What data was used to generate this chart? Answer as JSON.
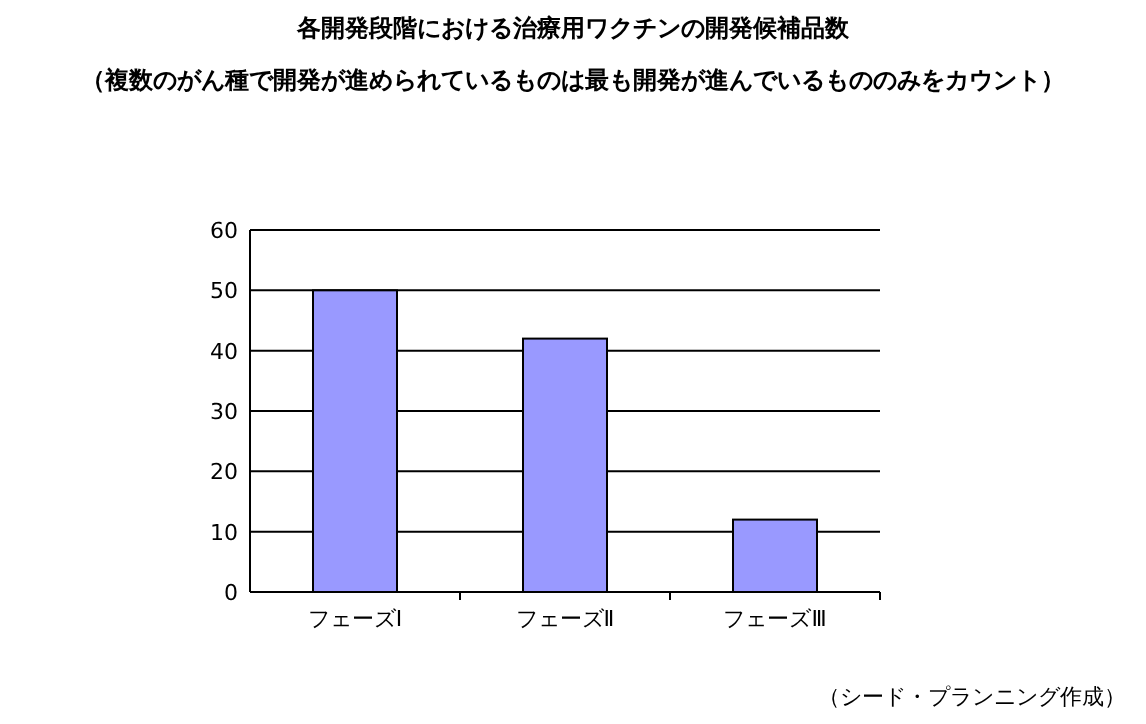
{
  "chart_data": {
    "type": "bar",
    "title": "各開発段階における治療用ワクチンの開発候補品数",
    "subtitle": "（複数のがん種で開発が進められているものは最も開発が進んでいるもののみをカウント）",
    "categories": [
      "フェーズⅠ",
      "フェーズⅡ",
      "フェーズⅢ"
    ],
    "values": [
      50,
      42,
      12
    ],
    "color": "#9999ff",
    "ylim": [
      0,
      60
    ],
    "yticks": [
      0,
      10,
      20,
      30,
      40,
      50,
      60
    ],
    "grid": "y",
    "annotations": [
      "（シード・プランニング作成）"
    ]
  }
}
